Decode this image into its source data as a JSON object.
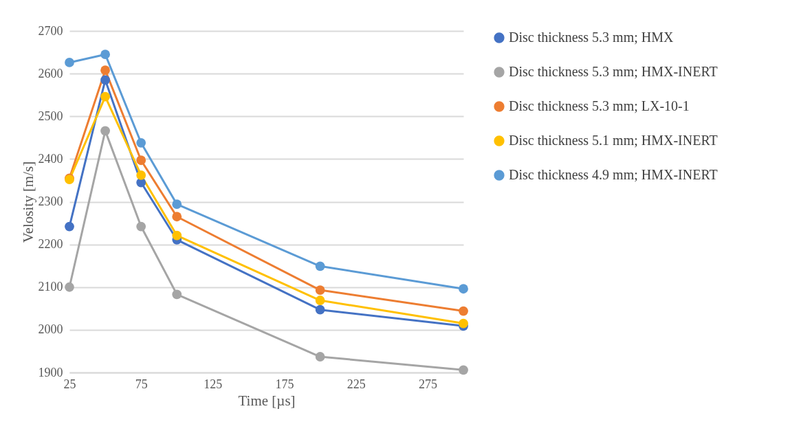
{
  "chart_data": {
    "type": "line",
    "xlabel": "Time [µs]",
    "ylabel": "Velosity [m/s]",
    "x": [
      25,
      50,
      75,
      100,
      200,
      300
    ],
    "series": [
      {
        "name": "Disc thickness 5.3 mm; HMX",
        "color": "#4472c4",
        "values": [
          2242,
          2585,
          2345,
          2211,
          2047,
          2009
        ]
      },
      {
        "name": "Disc thickness 5.3 mm; HMX-INERT",
        "color": "#a5a5a5",
        "values": [
          2100,
          2466,
          2242,
          2083,
          1937,
          1906
        ]
      },
      {
        "name": "Disc thickness 5.3 mm; LX-10-1",
        "color": "#ed7d31",
        "values": [
          2355,
          2608,
          2397,
          2265,
          2093,
          2044
        ]
      },
      {
        "name": "Disc thickness 5.1 mm; HMX-INERT",
        "color": "#ffc000",
        "values": [
          2352,
          2546,
          2362,
          2221,
          2069,
          2015
        ]
      },
      {
        "name": "Disc thickness 4.9 mm; HMX-INERT",
        "color": "#5b9bd5",
        "values": [
          2626,
          2645,
          2438,
          2294,
          2149,
          2096
        ]
      }
    ],
    "xlim": [
      25,
      300
    ],
    "xticks": [
      25,
      75,
      125,
      175,
      225,
      275
    ],
    "ylim": [
      1900,
      2700
    ],
    "yticks": [
      1900,
      2000,
      2100,
      2200,
      2300,
      2400,
      2500,
      2600,
      2700
    ],
    "grid": "y",
    "legend": "right",
    "marker": "circle",
    "line_style": "solid"
  }
}
